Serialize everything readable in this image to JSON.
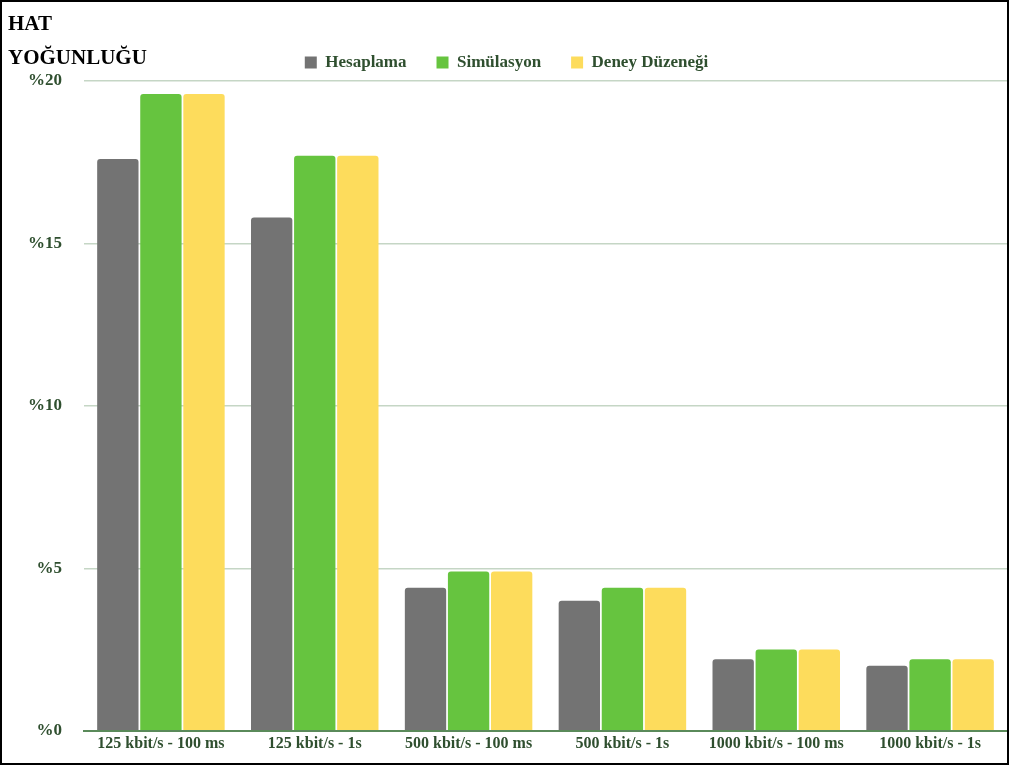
{
  "chart_data": {
    "type": "bar",
    "ylabel": "HAT YOĞUNLUĞU",
    "categories": [
      "125 kbit/s - 100 ms",
      "125 kbit/s - 1s",
      "500 kbit/s - 100 ms",
      "500 kbit/s - 1s",
      "1000 kbit/s - 100 ms",
      "1000 kbit/s - 1s"
    ],
    "series": [
      {
        "name": "Hesaplama",
        "color": "#737373",
        "values": [
          17.6,
          15.8,
          4.4,
          4.0,
          2.2,
          2.0
        ]
      },
      {
        "name": "Simülasyon",
        "color": "#66c43f",
        "values": [
          19.6,
          17.7,
          4.9,
          4.4,
          2.5,
          2.2
        ]
      },
      {
        "name": "Deney Düzeneği",
        "color": "#fddc5c",
        "values": [
          19.6,
          17.7,
          4.9,
          4.4,
          2.5,
          2.2
        ]
      }
    ],
    "ylim": [
      0,
      20
    ],
    "yticks": [
      {
        "value": 0,
        "label": "%0"
      },
      {
        "value": 5,
        "label": "%5"
      },
      {
        "value": 10,
        "label": "%10"
      },
      {
        "value": 15,
        "label": "%15"
      },
      {
        "value": 20,
        "label": "%20"
      }
    ],
    "grid": "y",
    "legend": "top"
  }
}
